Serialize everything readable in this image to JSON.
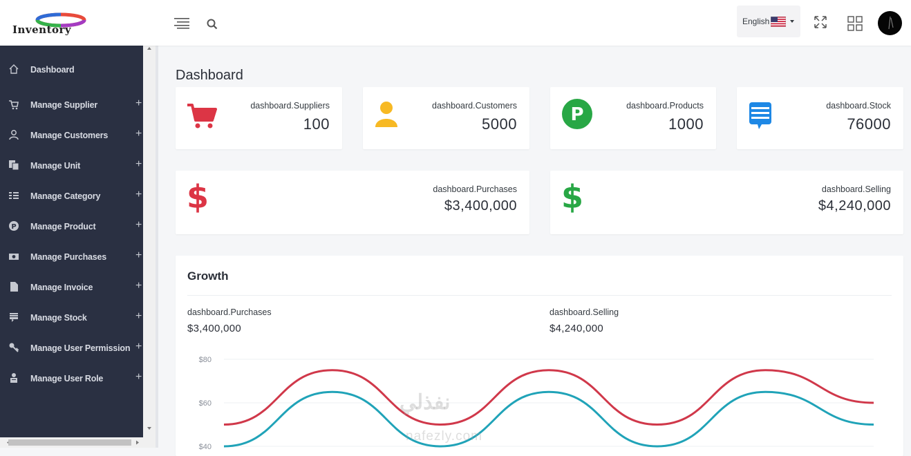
{
  "header": {
    "logo_text": "Inventory",
    "language": "English",
    "language_flag": "us-flag"
  },
  "sidebar": {
    "items": [
      {
        "label": "Dashboard",
        "icon": "home-icon",
        "expandable": false
      },
      {
        "label": "Manage Supplier",
        "icon": "cart-icon",
        "expandable": true
      },
      {
        "label": "Manage Customers",
        "icon": "user-icon",
        "expandable": true
      },
      {
        "label": "Manage Unit",
        "icon": "copy-icon",
        "expandable": true
      },
      {
        "label": "Manage Category",
        "icon": "list-icon",
        "expandable": true
      },
      {
        "label": "Manage Product",
        "icon": "product-icon",
        "expandable": true
      },
      {
        "label": "Manage Purchases",
        "icon": "money-icon",
        "expandable": true
      },
      {
        "label": "Manage Invoice",
        "icon": "file-icon",
        "expandable": true
      },
      {
        "label": "Manage Stock",
        "icon": "stock-icon",
        "expandable": true
      },
      {
        "label": "Manage User Permission",
        "icon": "key-icon",
        "expandable": true
      },
      {
        "label": "Manage User Role",
        "icon": "role-icon",
        "expandable": true
      }
    ],
    "plus_glyph": "+"
  },
  "page": {
    "title": "Dashboard"
  },
  "stats": [
    {
      "label": "dashboard.Suppliers",
      "value": "100",
      "icon": "cart-icon",
      "color": "#dc3545"
    },
    {
      "label": "dashboard.Customers",
      "value": "5000",
      "icon": "user-icon",
      "color": "#f7b924"
    },
    {
      "label": "dashboard.Products",
      "value": "1000",
      "icon": "product-p-icon",
      "color": "#28a745"
    },
    {
      "label": "dashboard.Stock",
      "value": "76000",
      "icon": "message-icon",
      "color": "#1e88e5"
    }
  ],
  "money": [
    {
      "label": "dashboard.Purchases",
      "value": "$3,400,000",
      "symbol": "$",
      "color": "#dc3545"
    },
    {
      "label": "dashboard.Selling",
      "value": "$4,240,000",
      "symbol": "$",
      "color": "#28a745"
    }
  ],
  "growth": {
    "title": "Growth",
    "purchases_label": "dashboard.Purchases",
    "purchases_value": "$3,400,000",
    "selling_label": "dashboard.Selling",
    "selling_value": "$4,240,000"
  },
  "chart_data": {
    "type": "line",
    "y_ticks": [
      "$80",
      "$60",
      "$40"
    ],
    "ylim": [
      40,
      80
    ],
    "grid": true,
    "series": [
      {
        "color": "#d0384a",
        "values": [
          50,
          75,
          50,
          75,
          50,
          75,
          60
        ]
      },
      {
        "color": "#20a3b8",
        "values": [
          40,
          65,
          40,
          65,
          40,
          65,
          50
        ]
      }
    ]
  },
  "watermark": {
    "arabic": "نفذلي",
    "latin": "nafezly.com"
  }
}
